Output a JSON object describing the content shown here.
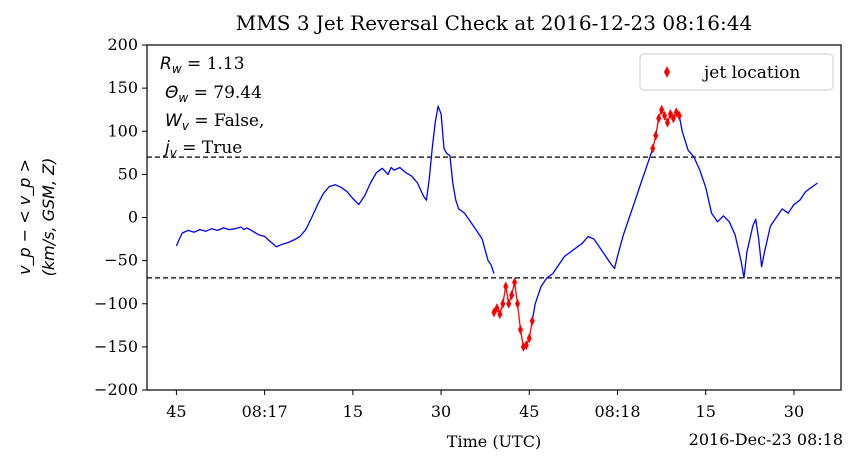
{
  "chart_data": {
    "type": "line",
    "title": "MMS 3 Jet Reversal Check at 2016-12-23 08:16:44",
    "xlabel": "Time (UTC)",
    "xlabel_offset": "2016-Dec-23 08:18",
    "ylabel_line1": "v_p − < v_p >",
    "ylabel_line2": "(km/s, GSM, Z)",
    "xlim": [
      "08:16:40",
      "08:18:38"
    ],
    "ylim": [
      -200,
      200
    ],
    "x_ticks": [
      {
        "t": "08:16:45",
        "label": "45"
      },
      {
        "t": "08:17:00",
        "label": "08:17"
      },
      {
        "t": "08:17:15",
        "label": "15"
      },
      {
        "t": "08:17:30",
        "label": "30"
      },
      {
        "t": "08:17:45",
        "label": "45"
      },
      {
        "t": "08:18:00",
        "label": "08:18"
      },
      {
        "t": "08:18:15",
        "label": "15"
      },
      {
        "t": "08:18:30",
        "label": "30"
      }
    ],
    "y_ticks": [
      -200,
      -150,
      -100,
      -50,
      0,
      50,
      100,
      150,
      200
    ],
    "thresholds": [
      70,
      -70
    ],
    "annotations": [
      "R_w = 1.13",
      "Θ_w = 79.44",
      "W_v = False,",
      "j_v = True"
    ],
    "legend": {
      "label": "jet location",
      "position": "top-right"
    },
    "colors": {
      "series": "#0000ff",
      "jet": "#ff0000",
      "threshold": "#000000"
    },
    "series": [
      {
        "color": "#0000ff",
        "points": [
          [
            "08:16:45",
            -33
          ],
          [
            "08:16:45.5",
            -25
          ],
          [
            "08:16:46",
            -18
          ],
          [
            "08:16:47",
            -15
          ],
          [
            "08:16:48",
            -17
          ],
          [
            "08:16:49",
            -14
          ],
          [
            "08:16:50",
            -16
          ],
          [
            "08:16:51",
            -13
          ],
          [
            "08:16:52",
            -15
          ],
          [
            "08:16:53",
            -12
          ],
          [
            "08:16:54",
            -14
          ],
          [
            "08:16:55",
            -13
          ],
          [
            "08:16:56",
            -11
          ],
          [
            "08:16:56.5",
            -14
          ],
          [
            "08:16:57",
            -12
          ],
          [
            "08:16:58",
            -16
          ],
          [
            "08:16:59",
            -20
          ],
          [
            "08:17:00",
            -22
          ],
          [
            "08:17:01",
            -28
          ],
          [
            "08:17:02",
            -34
          ],
          [
            "08:17:03",
            -31
          ],
          [
            "08:17:04",
            -29
          ],
          [
            "08:17:05",
            -26
          ],
          [
            "08:17:06",
            -22
          ],
          [
            "08:17:07",
            -14
          ],
          [
            "08:17:08",
            0
          ],
          [
            "08:17:09",
            15
          ],
          [
            "08:17:10",
            28
          ],
          [
            "08:17:11",
            36
          ],
          [
            "08:17:12",
            38
          ],
          [
            "08:17:13",
            35
          ],
          [
            "08:17:14",
            30
          ],
          [
            "08:17:15",
            22
          ],
          [
            "08:17:16",
            15
          ],
          [
            "08:17:17",
            25
          ],
          [
            "08:17:18",
            40
          ],
          [
            "08:17:19",
            52
          ],
          [
            "08:17:20",
            57
          ],
          [
            "08:17:21",
            50
          ],
          [
            "08:17:21.5",
            58
          ],
          [
            "08:17:22",
            55
          ],
          [
            "08:17:23",
            58
          ],
          [
            "08:17:24",
            52
          ],
          [
            "08:17:25",
            48
          ],
          [
            "08:17:26",
            40
          ],
          [
            "08:17:27",
            25
          ],
          [
            "08:17:27.5",
            20
          ],
          [
            "08:17:28",
            45
          ],
          [
            "08:17:28.5",
            80
          ],
          [
            "08:17:29",
            110
          ],
          [
            "08:17:29.5",
            129
          ],
          [
            "08:17:30",
            120
          ],
          [
            "08:17:30.5",
            80
          ],
          [
            "08:17:31",
            74
          ],
          [
            "08:17:31.5",
            72
          ],
          [
            "08:17:32",
            40
          ],
          [
            "08:17:32.5",
            20
          ],
          [
            "08:17:33",
            10
          ],
          [
            "08:17:34",
            5
          ],
          [
            "08:17:35",
            -5
          ],
          [
            "08:17:36",
            -15
          ],
          [
            "08:17:37",
            -25
          ],
          [
            "08:17:37.5",
            -38
          ],
          [
            "08:17:38",
            -50
          ],
          [
            "08:17:38.5",
            -55
          ],
          [
            "08:17:39",
            -65
          ]
        ]
      },
      {
        "color": "#ff0000",
        "points": [
          [
            "08:17:39",
            -110
          ],
          [
            "08:17:39.5",
            -105
          ],
          [
            "08:17:40",
            -112
          ],
          [
            "08:17:40.5",
            -100
          ],
          [
            "08:17:41",
            -80
          ],
          [
            "08:17:41.5",
            -100
          ],
          [
            "08:17:42",
            -90
          ],
          [
            "08:17:42.5",
            -75
          ],
          [
            "08:17:43",
            -100
          ],
          [
            "08:17:43.5",
            -130
          ],
          [
            "08:17:44",
            -150
          ],
          [
            "08:17:44.5",
            -148
          ],
          [
            "08:17:45",
            -140
          ],
          [
            "08:17:45.5",
            -120
          ]
        ]
      },
      {
        "color": "#0000ff",
        "points": [
          [
            "08:17:45.5",
            -120
          ],
          [
            "08:17:46",
            -100
          ],
          [
            "08:17:47",
            -80
          ],
          [
            "08:17:48",
            -70
          ],
          [
            "08:17:49",
            -65
          ],
          [
            "08:17:50",
            -55
          ],
          [
            "08:17:51",
            -45
          ],
          [
            "08:17:52",
            -40
          ],
          [
            "08:17:53",
            -35
          ],
          [
            "08:17:54",
            -30
          ],
          [
            "08:17:55",
            -22
          ],
          [
            "08:17:56",
            -25
          ],
          [
            "08:17:57",
            -35
          ],
          [
            "08:17:58",
            -45
          ],
          [
            "08:17:59",
            -55
          ],
          [
            "08:17:59.5",
            -59
          ],
          [
            "08:18:00",
            -45
          ],
          [
            "08:18:01",
            -20
          ],
          [
            "08:18:02",
            0
          ],
          [
            "08:18:03",
            20
          ],
          [
            "08:18:04",
            40
          ],
          [
            "08:18:05",
            60
          ],
          [
            "08:18:06",
            80
          ]
        ]
      },
      {
        "color": "#ff0000",
        "points": [
          [
            "08:18:06",
            80
          ],
          [
            "08:18:06.5",
            95
          ],
          [
            "08:18:07",
            115
          ],
          [
            "08:18:07.5",
            125
          ],
          [
            "08:18:08",
            118
          ],
          [
            "08:18:08.5",
            110
          ],
          [
            "08:18:09",
            120
          ],
          [
            "08:18:09.5",
            115
          ],
          [
            "08:18:10",
            122
          ],
          [
            "08:18:10.5",
            118
          ]
        ]
      },
      {
        "color": "#0000ff",
        "points": [
          [
            "08:18:10.5",
            118
          ],
          [
            "08:18:11",
            100
          ],
          [
            "08:18:12",
            78
          ],
          [
            "08:18:13",
            70
          ],
          [
            "08:18:14",
            55
          ],
          [
            "08:18:15",
            35
          ],
          [
            "08:18:16",
            5
          ],
          [
            "08:18:16.5",
            0
          ],
          [
            "08:18:17",
            -5
          ],
          [
            "08:18:18",
            2
          ],
          [
            "08:18:19",
            -5
          ],
          [
            "08:18:20",
            -20
          ],
          [
            "08:18:21",
            -50
          ],
          [
            "08:18:21.5",
            -70
          ],
          [
            "08:18:22",
            -40
          ],
          [
            "08:18:23",
            -10
          ],
          [
            "08:18:23.5",
            -2
          ],
          [
            "08:18:24",
            -25
          ],
          [
            "08:18:24.5",
            -57
          ],
          [
            "08:18:25",
            -40
          ],
          [
            "08:18:26",
            -10
          ],
          [
            "08:18:27",
            0
          ],
          [
            "08:18:28",
            10
          ],
          [
            "08:18:29",
            5
          ],
          [
            "08:18:30",
            15
          ],
          [
            "08:18:31",
            20
          ],
          [
            "08:18:32",
            30
          ],
          [
            "08:18:33",
            35
          ],
          [
            "08:18:34",
            40
          ]
        ]
      }
    ],
    "jet_markers": [
      [
        "08:17:39",
        -110
      ],
      [
        "08:17:39.5",
        -105
      ],
      [
        "08:17:40",
        -112
      ],
      [
        "08:17:40.5",
        -100
      ],
      [
        "08:17:41",
        -80
      ],
      [
        "08:17:41.5",
        -100
      ],
      [
        "08:17:42",
        -90
      ],
      [
        "08:17:42.5",
        -75
      ],
      [
        "08:17:43",
        -100
      ],
      [
        "08:17:43.5",
        -130
      ],
      [
        "08:17:44",
        -150
      ],
      [
        "08:17:44.5",
        -148
      ],
      [
        "08:17:45",
        -140
      ],
      [
        "08:17:45.5",
        -120
      ],
      [
        "08:18:06",
        80
      ],
      [
        "08:18:06.5",
        95
      ],
      [
        "08:18:07",
        115
      ],
      [
        "08:18:07.5",
        125
      ],
      [
        "08:18:08",
        118
      ],
      [
        "08:18:08.5",
        110
      ],
      [
        "08:18:09",
        120
      ],
      [
        "08:18:09.5",
        115
      ],
      [
        "08:18:10",
        122
      ],
      [
        "08:18:10.5",
        118
      ]
    ]
  }
}
